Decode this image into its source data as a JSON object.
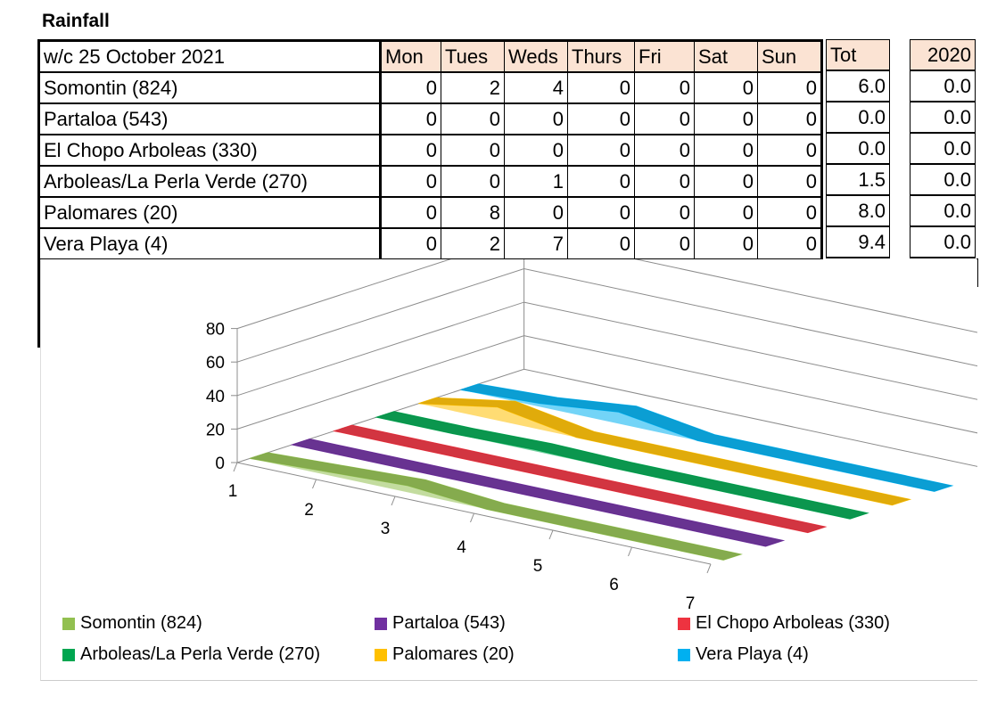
{
  "title": "Rainfall",
  "table": {
    "week_label": "w/c 25 October 2021",
    "days": [
      "Mon",
      "Tues",
      "Weds",
      "Thurs",
      "Fri",
      "Sat",
      "Sun"
    ],
    "tot_label": "Tot",
    "prev_year_label": "2020",
    "rows": [
      {
        "name": "Somontin (824)",
        "values": [
          "0",
          "2",
          "4",
          "0",
          "0",
          "0",
          "0"
        ],
        "tot": "6.0",
        "prev": "0.0"
      },
      {
        "name": "Partaloa (543)",
        "values": [
          "0",
          "0",
          "0",
          "0",
          "0",
          "0",
          "0"
        ],
        "tot": "0.0",
        "prev": "0.0"
      },
      {
        "name": "El Chopo Arboleas (330)",
        "values": [
          "0",
          "0",
          "0",
          "0",
          "0",
          "0",
          "0"
        ],
        "tot": "0.0",
        "prev": "0.0"
      },
      {
        "name": "Arboleas/La Perla Verde (270)",
        "values": [
          "0",
          "0",
          "1",
          "0",
          "0",
          "0",
          "0"
        ],
        "tot": "1.5",
        "prev": "0.0"
      },
      {
        "name": "Palomares (20)",
        "values": [
          "0",
          "8",
          "0",
          "0",
          "0",
          "0",
          "0"
        ],
        "tot": "8.0",
        "prev": "0.0"
      },
      {
        "name": "Vera Playa (4)",
        "values": [
          "0",
          "2",
          "7",
          "0",
          "0",
          "0",
          "0"
        ],
        "tot": "9.4",
        "prev": "0.0"
      }
    ]
  },
  "chart_data": {
    "type": "area",
    "categories": [
      "1",
      "2",
      "3",
      "4",
      "5",
      "6",
      "7"
    ],
    "yticks": [
      "0",
      "20",
      "40",
      "60",
      "80"
    ],
    "ylim": [
      0,
      80
    ],
    "grid": true,
    "legend_position": "bottom",
    "series": [
      {
        "name": "Somontin (824)",
        "color": "#92c050",
        "values": [
          0,
          2,
          4,
          0,
          0,
          0,
          0
        ]
      },
      {
        "name": "Partaloa (543)",
        "color": "#7030a0",
        "values": [
          0,
          0,
          0,
          0,
          0,
          0,
          0
        ]
      },
      {
        "name": "El Chopo Arboleas (330)",
        "color": "#ee3340",
        "values": [
          0,
          0,
          0,
          0,
          0,
          0,
          0
        ]
      },
      {
        "name": "Arboleas/La Perla Verde (270)",
        "color": "#00a650",
        "values": [
          0,
          0,
          1,
          0,
          0,
          0,
          0
        ]
      },
      {
        "name": "Palomares (20)",
        "color": "#ffc000",
        "values": [
          0,
          8,
          0,
          0,
          0,
          0,
          0
        ]
      },
      {
        "name": "Vera Playa (4)",
        "color": "#00b0f0",
        "values": [
          0,
          2,
          7,
          0,
          0,
          0,
          0
        ]
      }
    ]
  }
}
